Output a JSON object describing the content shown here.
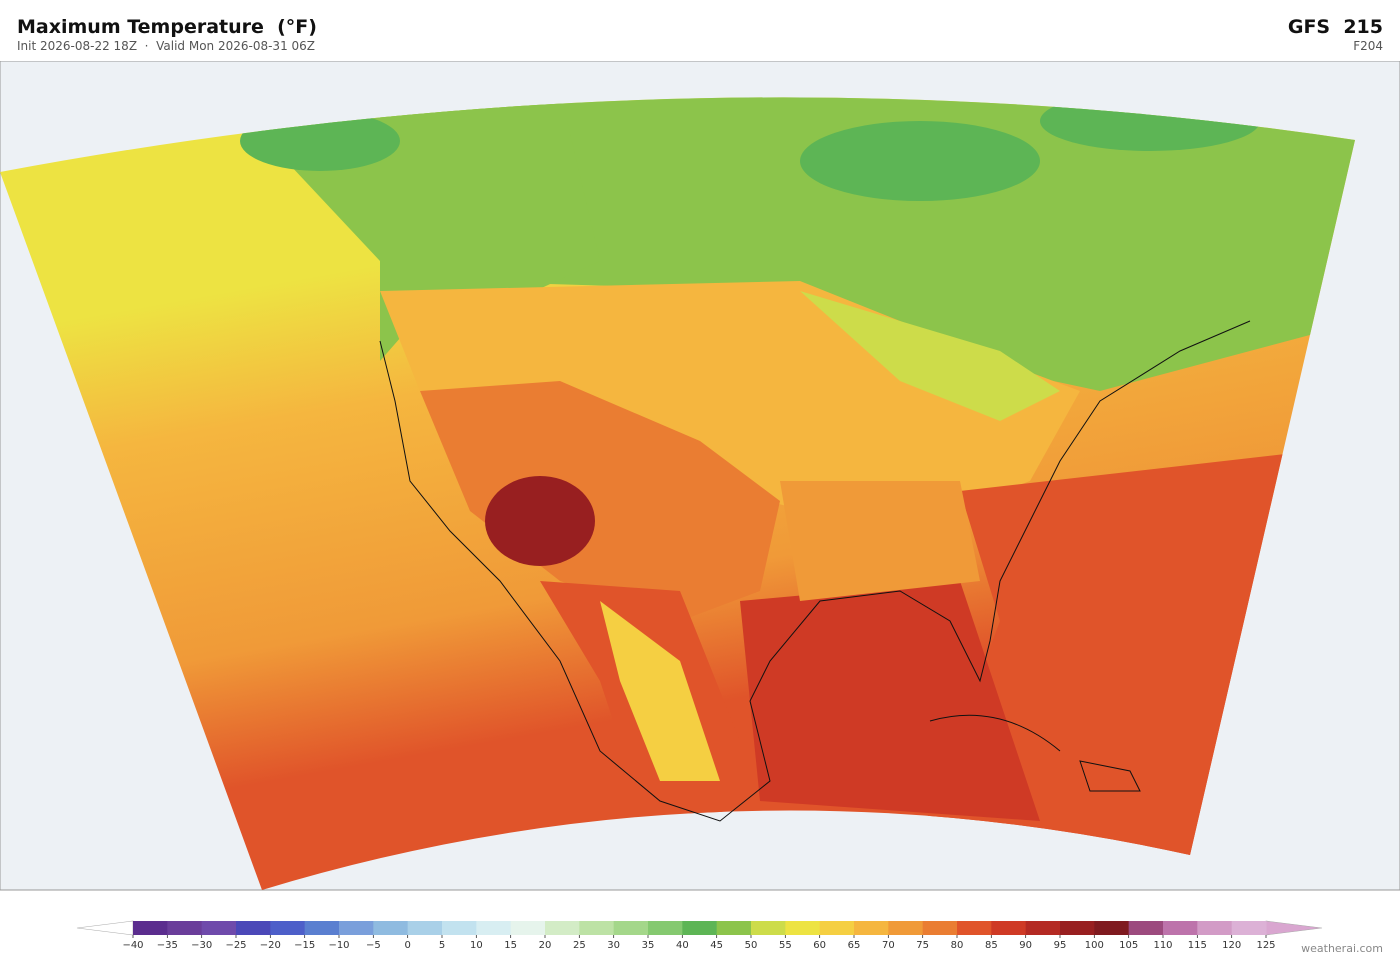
{
  "header": {
    "title": "Maximum Temperature  (°F)",
    "subtitle": "Init 2026-08-22 18Z  ·  Valid Mon 2026-08-31 06Z",
    "model": "GFS  215",
    "forecast_hour": "F204"
  },
  "colorbar": {
    "ticks": [
      {
        "value": -40,
        "label": "−40"
      },
      {
        "value": -35,
        "label": "−35"
      },
      {
        "value": -30,
        "label": "−30"
      },
      {
        "value": -25,
        "label": "−25"
      },
      {
        "value": -20,
        "label": "−20"
      },
      {
        "value": -15,
        "label": "−15"
      },
      {
        "value": -10,
        "label": "−10"
      },
      {
        "value": -5,
        "label": "−5"
      },
      0,
      5,
      10,
      15,
      20,
      25,
      30,
      35,
      40,
      45,
      50,
      55,
      60,
      65,
      70,
      75,
      80,
      85,
      90,
      95,
      100,
      105,
      110,
      115,
      120,
      125
    ],
    "colors": [
      "#5b2d8e",
      "#6a3d9a",
      "#6f4aab",
      "#4b48b8",
      "#4d5fc9",
      "#5a7fd0",
      "#7a9fdb",
      "#8fbbe0",
      "#a9d0e8",
      "#c2e2ef",
      "#d8eef2",
      "#e6f4ec",
      "#d3ecc6",
      "#bde2a5",
      "#a4d78a",
      "#85c970",
      "#5db555",
      "#8cc44b",
      "#cddc4a",
      "#ede342",
      "#f5cf42",
      "#f5b63f",
      "#f09a38",
      "#ea7d32",
      "#e0542a",
      "#cf3a25",
      "#b42a23",
      "#981f20",
      "#7f1a1f",
      "#9c4a7e",
      "#bd73ab",
      "#d29bc6",
      "#dcb1d6"
    ],
    "under_color": "#ffffff",
    "over_color": "#d9a6d0"
  },
  "footer": {
    "credit": "weatherai.com"
  }
}
